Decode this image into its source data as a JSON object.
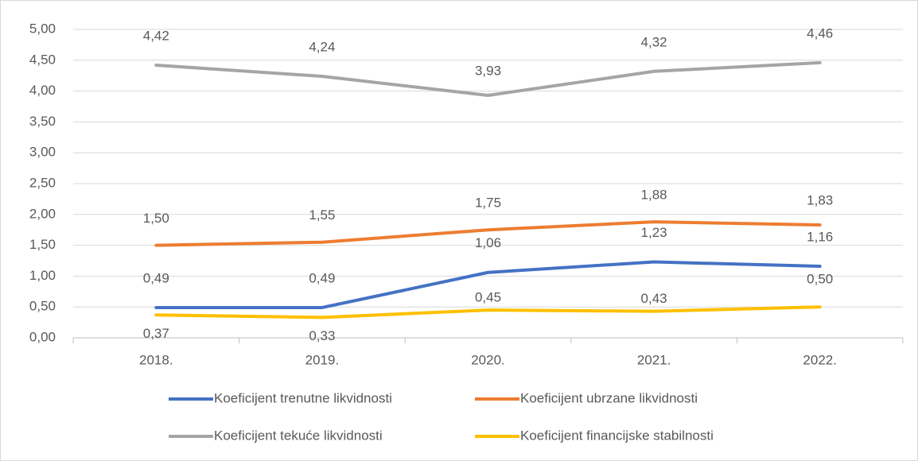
{
  "chart_data": {
    "type": "line",
    "categories": [
      "2018.",
      "2019.",
      "2020.",
      "2021.",
      "2022."
    ],
    "series": [
      {
        "name": "Koeficijent trenutne likvidnosti",
        "color": "#4472c4",
        "values": [
          0.49,
          0.49,
          1.06,
          1.23,
          1.16
        ],
        "value_labels": [
          "0,49",
          "0,49",
          "1,06",
          "1,23",
          "1,16"
        ]
      },
      {
        "name": "Koeficijent ubrzane likvidnosti",
        "color": "#ed7d31",
        "values": [
          1.5,
          1.55,
          1.75,
          1.88,
          1.83
        ],
        "value_labels": [
          "1,50",
          "1,55",
          "1,75",
          "1,88",
          "1,83"
        ]
      },
      {
        "name": "Koeficijent tekuće likvidnosti",
        "color": "#a5a5a5",
        "values": [
          4.42,
          4.24,
          3.93,
          4.32,
          4.46
        ],
        "value_labels": [
          "4,42",
          "4,24",
          "3,93",
          "4,32",
          "4,46"
        ]
      },
      {
        "name": "Koeficijent financijske stabilnosti",
        "color": "#ffc000",
        "values": [
          0.37,
          0.33,
          0.45,
          0.43,
          0.5
        ],
        "value_labels": [
          "0,37",
          "0,33",
          "0,45",
          "0,43",
          "0,50"
        ]
      }
    ],
    "ylim": [
      0,
      5
    ],
    "yticks": [
      {
        "value": 0,
        "label": "0,00"
      },
      {
        "value": 0.5,
        "label": "0,50"
      },
      {
        "value": 1,
        "label": "1,00"
      },
      {
        "value": 1.5,
        "label": "1,50"
      },
      {
        "value": 2,
        "label": "2,00"
      },
      {
        "value": 2.5,
        "label": "2,50"
      },
      {
        "value": 3,
        "label": "3,00"
      },
      {
        "value": 3.5,
        "label": "3,50"
      },
      {
        "value": 4,
        "label": "4,00"
      },
      {
        "value": 4.5,
        "label": "4,50"
      },
      {
        "value": 5,
        "label": "5,00"
      }
    ],
    "grid": true,
    "legend": "bottom"
  }
}
